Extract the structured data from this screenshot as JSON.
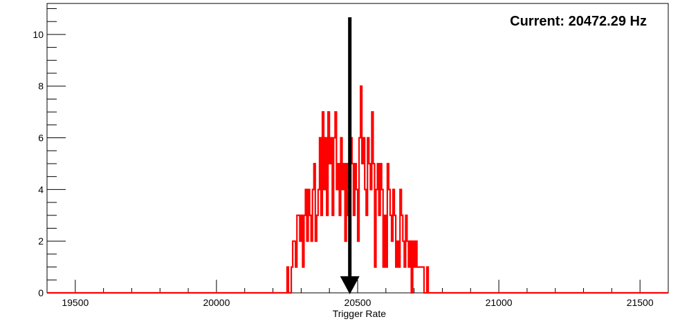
{
  "chart_data": {
    "type": "histogram",
    "title": "",
    "xlabel": "Trigger Rate",
    "ylabel": "",
    "xlim": [
      19400,
      21600
    ],
    "ylim": [
      0,
      11.2
    ],
    "x_ticks": [
      19500,
      20000,
      20500,
      21000,
      21500
    ],
    "y_ticks": [
      0,
      2,
      4,
      6,
      8,
      10
    ],
    "grid": false,
    "legend": "none",
    "line_color": "#ff0000",
    "bin_width": 5,
    "bins": [
      [
        20250,
        1
      ],
      [
        20255,
        0
      ],
      [
        20260,
        0
      ],
      [
        20265,
        1
      ],
      [
        20270,
        2
      ],
      [
        20275,
        2
      ],
      [
        20280,
        1
      ],
      [
        20285,
        3
      ],
      [
        20290,
        3
      ],
      [
        20295,
        2
      ],
      [
        20300,
        3
      ],
      [
        20305,
        1
      ],
      [
        20310,
        3
      ],
      [
        20315,
        4
      ],
      [
        20320,
        2
      ],
      [
        20325,
        4
      ],
      [
        20330,
        3
      ],
      [
        20335,
        2
      ],
      [
        20340,
        4
      ],
      [
        20345,
        5
      ],
      [
        20350,
        2
      ],
      [
        20355,
        3
      ],
      [
        20360,
        4
      ],
      [
        20365,
        6
      ],
      [
        20370,
        3
      ],
      [
        20375,
        7
      ],
      [
        20380,
        4
      ],
      [
        20385,
        6
      ],
      [
        20390,
        3
      ],
      [
        20395,
        7
      ],
      [
        20400,
        5
      ],
      [
        20405,
        6
      ],
      [
        20410,
        3
      ],
      [
        20415,
        6
      ],
      [
        20420,
        7
      ],
      [
        20425,
        4
      ],
      [
        20430,
        5
      ],
      [
        20435,
        3
      ],
      [
        20440,
        6
      ],
      [
        20445,
        4
      ],
      [
        20450,
        5
      ],
      [
        20455,
        2
      ],
      [
        20460,
        5
      ],
      [
        20465,
        3
      ],
      [
        20470,
        4
      ],
      [
        20475,
        6
      ],
      [
        20480,
        5
      ],
      [
        20485,
        3
      ],
      [
        20490,
        5
      ],
      [
        20495,
        4
      ],
      [
        20500,
        2
      ],
      [
        20505,
        6
      ],
      [
        20510,
        8
      ],
      [
        20515,
        5
      ],
      [
        20520,
        6
      ],
      [
        20525,
        4
      ],
      [
        20530,
        3
      ],
      [
        20535,
        6
      ],
      [
        20540,
        5
      ],
      [
        20545,
        4
      ],
      [
        20550,
        7
      ],
      [
        20555,
        5
      ],
      [
        20560,
        1
      ],
      [
        20565,
        4
      ],
      [
        20570,
        5
      ],
      [
        20575,
        3
      ],
      [
        20580,
        5
      ],
      [
        20585,
        4
      ],
      [
        20590,
        1
      ],
      [
        20595,
        3
      ],
      [
        20600,
        1
      ],
      [
        20605,
        5
      ],
      [
        20610,
        4
      ],
      [
        20615,
        3
      ],
      [
        20620,
        2
      ],
      [
        20625,
        4
      ],
      [
        20630,
        3
      ],
      [
        20635,
        1
      ],
      [
        20640,
        2
      ],
      [
        20645,
        1
      ],
      [
        20650,
        4
      ],
      [
        20655,
        3
      ],
      [
        20660,
        2
      ],
      [
        20665,
        1
      ],
      [
        20670,
        3
      ],
      [
        20675,
        2
      ],
      [
        20680,
        1
      ],
      [
        20685,
        2
      ],
      [
        20690,
        0
      ],
      [
        20695,
        2
      ],
      [
        20700,
        1
      ],
      [
        20705,
        2
      ],
      [
        20710,
        1
      ],
      [
        20715,
        1
      ],
      [
        20720,
        1
      ],
      [
        20725,
        1
      ],
      [
        20730,
        1
      ],
      [
        20735,
        0
      ],
      [
        20740,
        0
      ],
      [
        20745,
        1
      ]
    ],
    "marker": {
      "x": 20472.29,
      "direction": "down"
    },
    "annotation": "Current: 20472.29 Hz"
  }
}
